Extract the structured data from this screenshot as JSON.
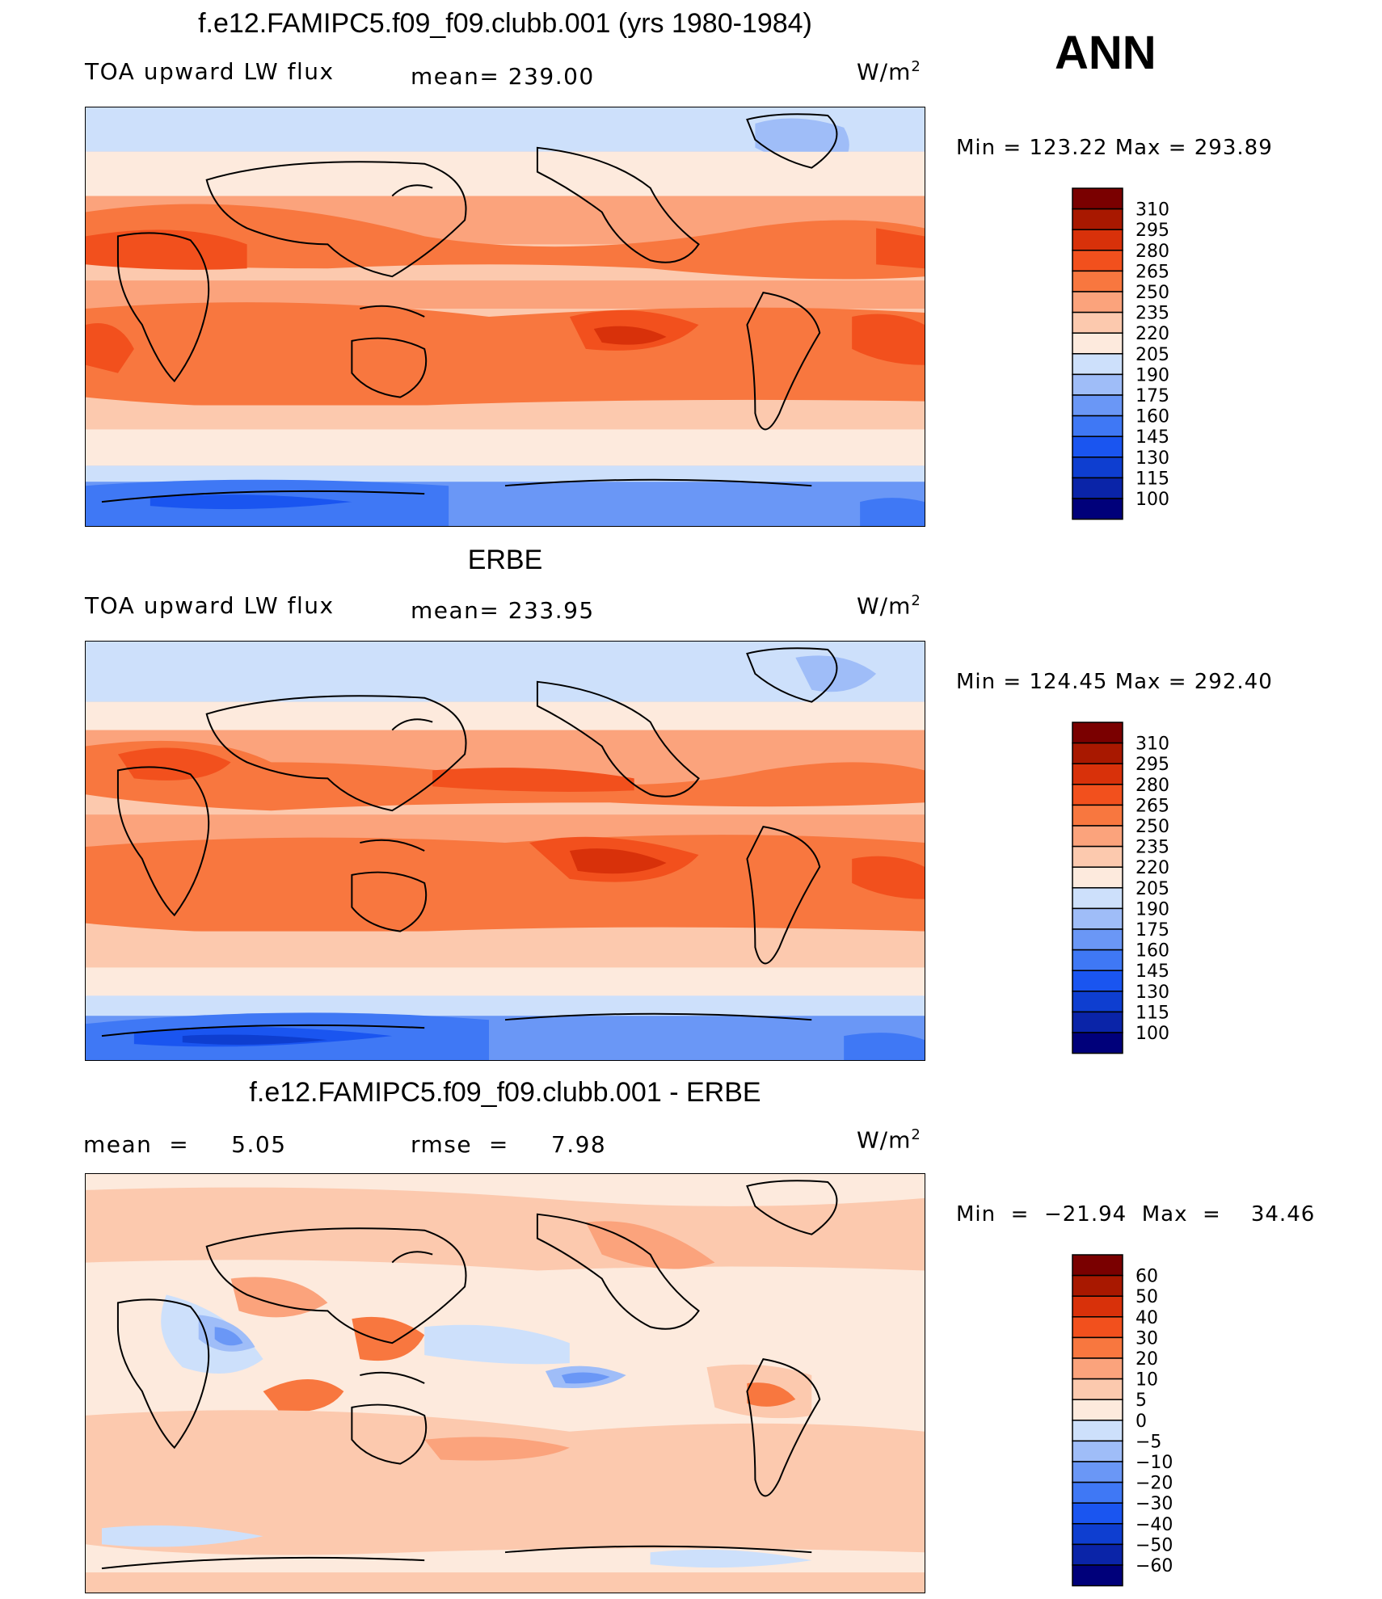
{
  "season": "ANN",
  "panels": [
    {
      "title": "f.e12.FAMIPC5.f09_f09.clubb.001 (yrs 1980-1984)",
      "left_label": "TOA upward LW flux",
      "center_label": "mean= 239.00",
      "units": "W/m",
      "units_exp": "2",
      "minmax": "Min  =  123.22  Max  =  293.89"
    },
    {
      "title": "ERBE",
      "left_label": "TOA upward LW flux",
      "center_label": "mean= 233.95",
      "units": "W/m",
      "units_exp": "2",
      "minmax": "Min  =  124.45  Max  =  292.40"
    },
    {
      "title": "f.e12.FAMIPC5.f09_f09.clubb.001 - ERBE",
      "left_label": "mean  =     5.05",
      "center_label": "rmse  =     7.98",
      "units": "W/m",
      "units_exp": "2",
      "minmax": "Min  =  −21.94  Max  =    34.46"
    }
  ],
  "chart_data": [
    {
      "type": "heatmap",
      "title": "f.e12.FAMIPC5.f09_f09.clubb.001 (yrs 1980-1984)",
      "variable": "TOA upward LW flux",
      "units": "W/m2",
      "mean": 239.0,
      "min": 123.22,
      "max": 293.89,
      "colorbar_levels": [
        100,
        115,
        130,
        145,
        160,
        175,
        190,
        205,
        220,
        235,
        250,
        265,
        280,
        295,
        310
      ],
      "colorbar_colors": [
        "#00007a",
        "#0a24a8",
        "#0e3ed0",
        "#1a55f0",
        "#3f78f5",
        "#6a97f6",
        "#9fbdf8",
        "#cde0fb",
        "#fdeadd",
        "#fcc9ae",
        "#fba37c",
        "#f8773f",
        "#f2501d",
        "#d8310a",
        "#a81800",
        "#7a0000"
      ]
    },
    {
      "type": "heatmap",
      "title": "ERBE",
      "variable": "TOA upward LW flux",
      "units": "W/m2",
      "mean": 233.95,
      "min": 124.45,
      "max": 292.4,
      "colorbar_levels": [
        100,
        115,
        130,
        145,
        160,
        175,
        190,
        205,
        220,
        235,
        250,
        265,
        280,
        295,
        310
      ],
      "colorbar_colors": [
        "#00007a",
        "#0a24a8",
        "#0e3ed0",
        "#1a55f0",
        "#3f78f5",
        "#6a97f6",
        "#9fbdf8",
        "#cde0fb",
        "#fdeadd",
        "#fcc9ae",
        "#fba37c",
        "#f8773f",
        "#f2501d",
        "#d8310a",
        "#a81800",
        "#7a0000"
      ]
    },
    {
      "type": "heatmap",
      "title": "f.e12.FAMIPC5.f09_f09.clubb.001 - ERBE",
      "units": "W/m2",
      "mean": 5.05,
      "rmse": 7.98,
      "min": -21.94,
      "max": 34.46,
      "colorbar_levels": [
        -60,
        -50,
        -40,
        -30,
        -20,
        -10,
        -5,
        0,
        5,
        10,
        20,
        30,
        40,
        50,
        60
      ],
      "colorbar_labels": [
        "−60",
        "−50",
        "−40",
        "−30",
        "−20",
        "−10",
        "−5",
        "0",
        "5",
        "10",
        "20",
        "30",
        "40",
        "50",
        "60"
      ],
      "colorbar_colors": [
        "#00007a",
        "#0a24a8",
        "#0e3ed0",
        "#1a55f0",
        "#3f78f5",
        "#6a97f6",
        "#9fbdf8",
        "#cde0fb",
        "#fdeadd",
        "#fcc9ae",
        "#fba37c",
        "#f8773f",
        "#f2501d",
        "#d8310a",
        "#a81800",
        "#7a0000"
      ]
    }
  ]
}
